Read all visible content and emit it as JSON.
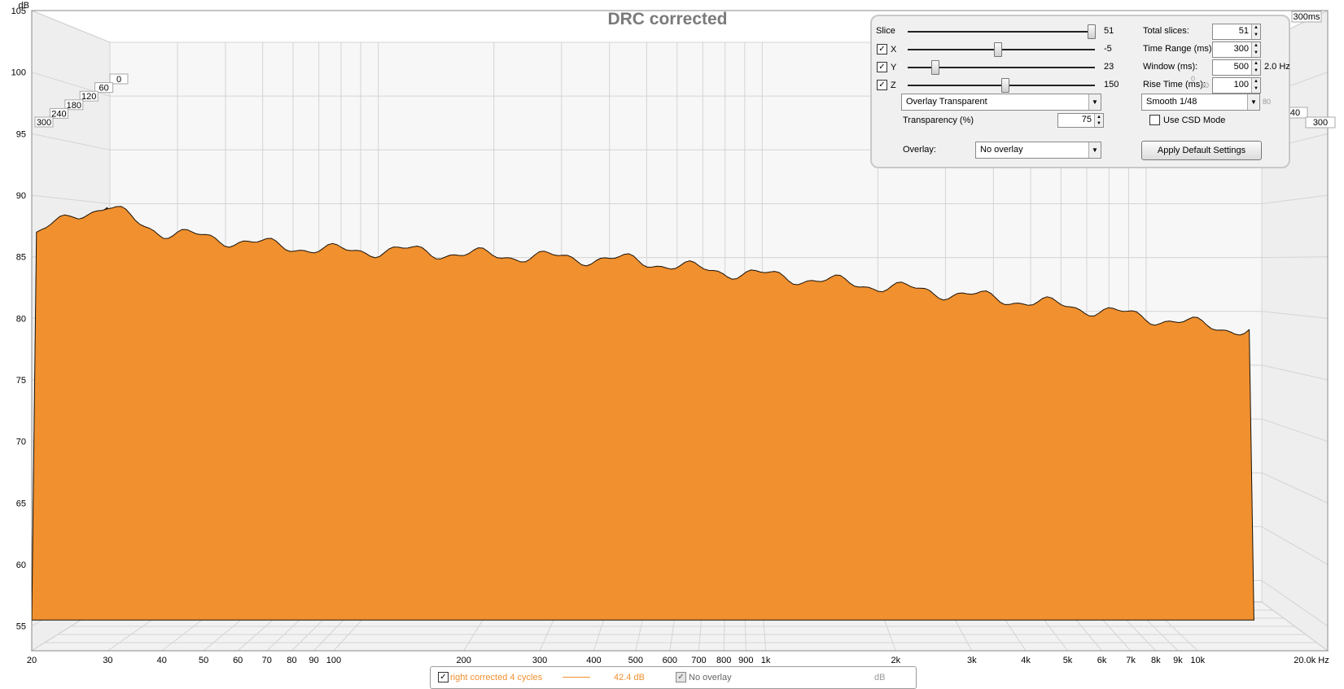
{
  "chart_data": {
    "type": "area",
    "title": "DRC corrected",
    "y_unit_label": "dB",
    "x_unit_label": "Hz",
    "x_scale": "log",
    "ylim": [
      53,
      105
    ],
    "xlim": [
      20,
      20000
    ],
    "zlim_ms": [
      0,
      300
    ],
    "y_ticks": [
      "105",
      "100",
      "95",
      "90",
      "85",
      "80",
      "75",
      "70",
      "65",
      "60",
      "55"
    ],
    "x_ticks": [
      "20",
      "30",
      "40",
      "50",
      "60",
      "70",
      "80",
      "90",
      "100",
      "200",
      "300",
      "400",
      "500",
      "600",
      "700",
      "800",
      "900",
      "1k",
      "2k",
      "3k",
      "4k",
      "5k",
      "6k",
      "7k",
      "8k",
      "9k",
      "10k",
      "20.0k Hz"
    ],
    "z_ticks_left": [
      "0",
      "60",
      "120",
      "180",
      "240",
      "300"
    ],
    "z_ticks_right": [
      "300ms",
      "240",
      "300"
    ],
    "fill_color": "#f0902f",
    "line_color": "#1a1208",
    "grid": true,
    "series": [
      {
        "name": "right corrected 4 cycles",
        "slices": 51,
        "x": [
          20,
          25,
          30,
          40,
          50,
          70,
          100,
          150,
          200,
          300,
          500,
          700,
          1000,
          2000,
          5000,
          10000,
          13000
        ],
        "y_front": [
          86.5,
          88.5,
          89,
          87,
          86.6,
          86,
          85.5,
          85.5,
          85.2,
          85,
          84.7,
          84,
          83.5,
          82.5,
          81,
          79.5,
          79
        ]
      }
    ]
  },
  "controls": {
    "slice_label": "Slice",
    "slice_value": "51",
    "x_label": "X",
    "x_value": "-5",
    "y_label": "Y",
    "y_value": "23",
    "z_label": "Z",
    "z_value": "150",
    "total_slices_label": "Total slices:",
    "total_slices_value": "51",
    "time_range_label": "Time Range (ms):",
    "time_range_value": "300",
    "window_label": "Window (ms):",
    "window_value": "500",
    "window_hz": "2.0 Hz",
    "rise_time_label": "Rise Time (ms):",
    "rise_time_value": "100",
    "overlay_mode": "Overlay Transparent",
    "smoothing": "Smooth 1/48",
    "transparency_label": "Transparency (%)",
    "transparency_value": "75",
    "csd_label": "Use CSD Mode",
    "overlay_label": "Overlay:",
    "overlay_value": "No overlay",
    "apply_button": "Apply Default Settings",
    "ghost_labels": [
      "0",
      "60",
      "80"
    ]
  },
  "legend": {
    "measurement": "right corrected 4 cycles",
    "level": "42.4 dB",
    "overlay": "No overlay",
    "unit": "dB"
  }
}
